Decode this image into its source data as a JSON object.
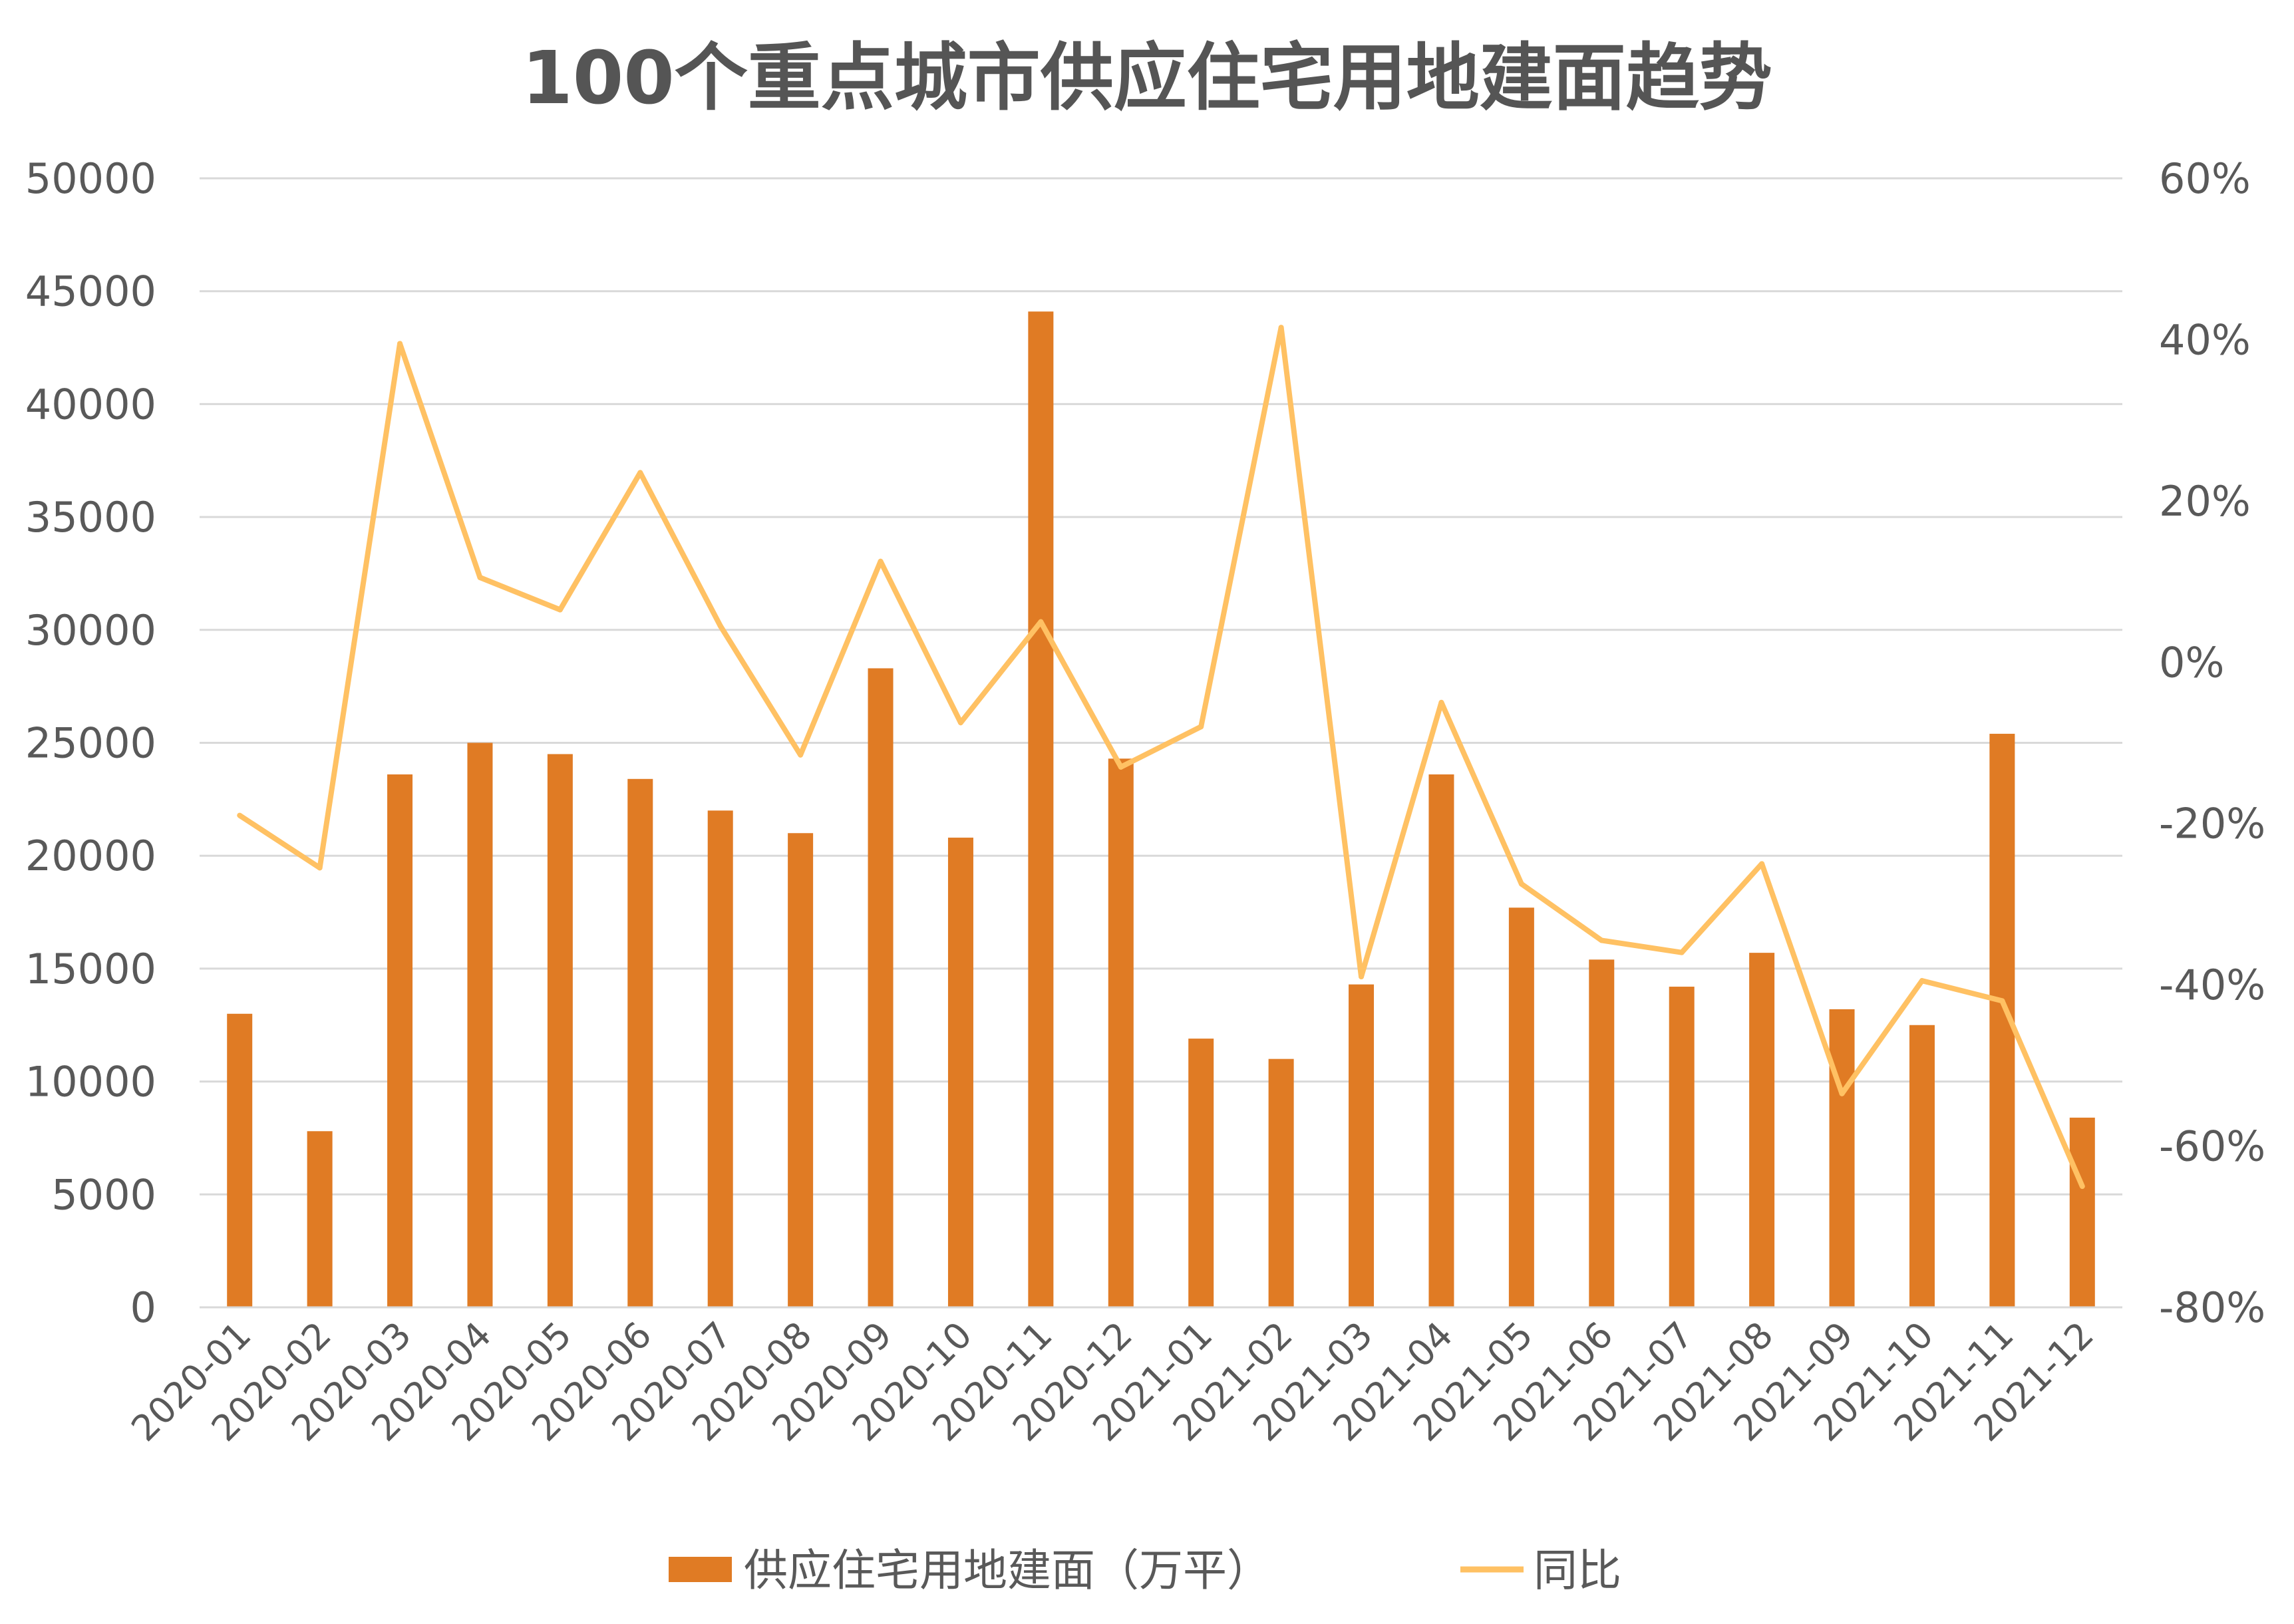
{
  "chart_data": {
    "type": "bar",
    "title": "100个重点城市供应住宅用地建面趋势",
    "categories": [
      "2020-01",
      "2020-02",
      "2020-03",
      "2020-04",
      "2020-05",
      "2020-06",
      "2020-07",
      "2020-08",
      "2020-09",
      "2020-10",
      "2020-11",
      "2020-12",
      "2021-01",
      "2021-02",
      "2021-03",
      "2021-04",
      "2021-05",
      "2021-06",
      "2021-07",
      "2021-08",
      "2021-09",
      "2021-10",
      "2021-11",
      "2021-12"
    ],
    "series": [
      {
        "name": "供应住宅用地建面（万平）",
        "type": "bar",
        "axis": "left",
        "color": "#E07B24",
        "values": [
          13000,
          7800,
          23600,
          25000,
          24500,
          23400,
          22000,
          21000,
          28300,
          20800,
          44100,
          24300,
          11900,
          11000,
          14300,
          23600,
          17700,
          15400,
          14200,
          15700,
          13200,
          12500,
          25400,
          8400
        ]
      },
      {
        "name": "同比",
        "type": "line",
        "axis": "right",
        "color": "#FFC163",
        "values": [
          -0.19,
          -0.255,
          0.395,
          0.105,
          0.065,
          0.235,
          0.045,
          -0.115,
          0.125,
          -0.075,
          0.05,
          -0.13,
          -0.08,
          0.415,
          -0.39,
          -0.05,
          -0.275,
          -0.345,
          -0.36,
          -0.25,
          -0.535,
          -0.395,
          -0.42,
          -0.65
        ]
      }
    ],
    "y_left": {
      "ylim": [
        0,
        50000
      ],
      "ticks": [
        "0",
        "5000",
        "10000",
        "15000",
        "20000",
        "25000",
        "30000",
        "35000",
        "40000",
        "45000",
        "50000"
      ]
    },
    "y_right": {
      "ylim": [
        -0.8,
        0.6
      ],
      "ticks": [
        "-80%",
        "-60%",
        "-40%",
        "-20%",
        "0%",
        "20%",
        "40%",
        "60%"
      ]
    },
    "grid": true,
    "legend_position": "bottom"
  }
}
